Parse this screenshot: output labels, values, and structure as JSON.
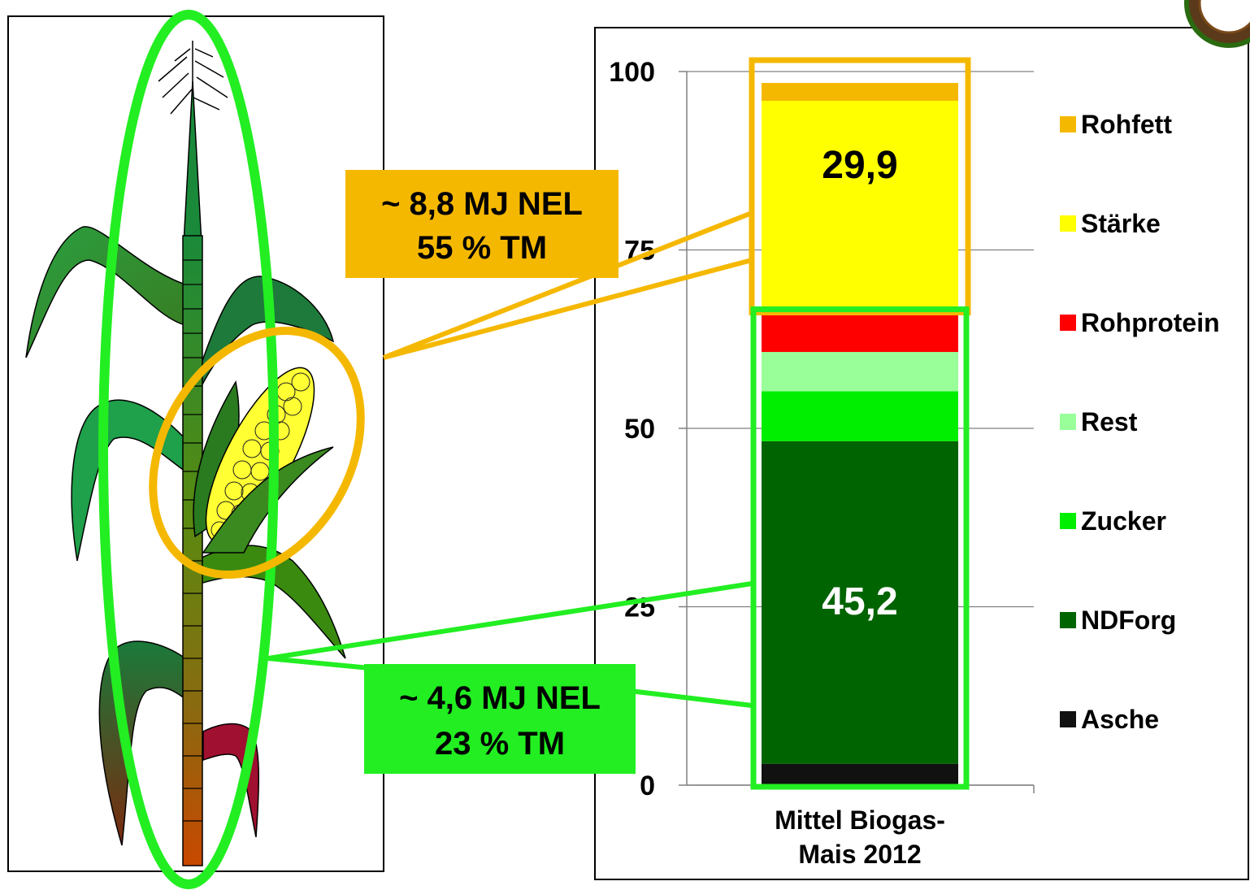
{
  "colors": {
    "Rohfett": "#F5B800",
    "Stärke": "#FFFF00",
    "Rohprotein": "#FF0000",
    "Rest": "#99FF99",
    "Zucker": "#00EE00",
    "NDForg": "#006400",
    "Asche": "#111111",
    "orange_outline": "#F5B800",
    "green_outline": "#22EE22"
  },
  "chart_data": {
    "type": "bar",
    "stacked": true,
    "categories": [
      "Mittel Biogas-Mais 2012"
    ],
    "category_label_lines": [
      "Mittel Biogas-",
      "Mais 2012"
    ],
    "ylim": [
      0,
      100
    ],
    "yticks": [
      0,
      25,
      50,
      75,
      100
    ],
    "grid": true,
    "legend_position": "right",
    "series": [
      {
        "name": "Asche",
        "values": [
          3.0
        ]
      },
      {
        "name": "NDForg",
        "values": [
          45.2
        ]
      },
      {
        "name": "Zucker",
        "values": [
          7.0
        ]
      },
      {
        "name": "Rest",
        "values": [
          5.5
        ]
      },
      {
        "name": "Rohprotein",
        "values": [
          5.3
        ]
      },
      {
        "name": "Stärke",
        "values": [
          29.9
        ]
      },
      {
        "name": "Rohfett",
        "values": [
          2.5
        ]
      }
    ],
    "data_labels": [
      {
        "series": "NDForg",
        "text": "45,2"
      },
      {
        "series": "Stärke",
        "text": "29,9"
      }
    ]
  },
  "callouts": [
    {
      "id": "kolben",
      "line1": "~ 8,8 MJ NEL",
      "line2": "55 % TM"
    },
    {
      "id": "pflanze",
      "line1": "~ 4,6 MJ NEL",
      "line2": "23 % TM"
    }
  ]
}
